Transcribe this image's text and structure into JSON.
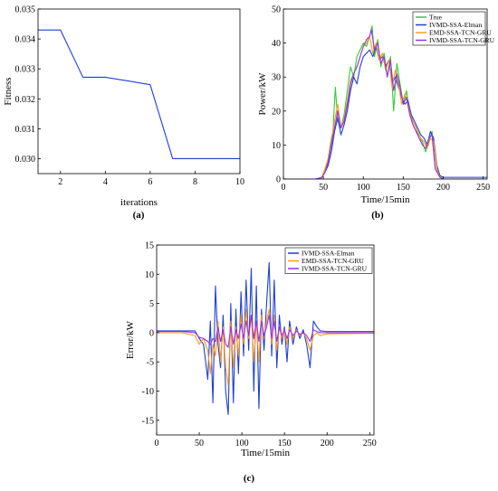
{
  "chart_data": [
    {
      "type": "line",
      "panel_label": "(a)",
      "xlabel": "iterations",
      "ylabel": "Fitness",
      "xlim": [
        1,
        10
      ],
      "ylim": [
        0.0295,
        0.035
      ],
      "xticks": [
        2,
        4,
        6,
        8,
        10
      ],
      "yticks": [
        0.03,
        0.031,
        0.032,
        0.033,
        0.034,
        0.035
      ],
      "ytick_labels": [
        "0.030",
        "0.031",
        "0.032",
        "0.033",
        "0.034",
        "0.035"
      ],
      "grid": false,
      "series": [
        {
          "color": "#1f3fd6",
          "x": [
            1,
            2,
            3,
            4,
            5,
            6,
            7,
            8,
            9,
            10
          ],
          "y": [
            0.0343,
            0.0343,
            0.03272,
            0.03272,
            0.0326,
            0.03247,
            0.03,
            0.03,
            0.03,
            0.03
          ]
        }
      ]
    },
    {
      "type": "line",
      "panel_label": "(b)",
      "xlabel": "Time/15min",
      "ylabel": "Power/kW",
      "xlim": [
        0,
        255
      ],
      "ylim": [
        0,
        50
      ],
      "xticks": [
        0,
        50,
        100,
        150,
        200,
        250
      ],
      "yticks": [
        0,
        10,
        20,
        30,
        40,
        50
      ],
      "grid": false,
      "legend_position": "top-right",
      "series": [
        {
          "name": "True",
          "color": "#33cc33",
          "x": [
            0,
            40,
            48,
            52,
            56,
            60,
            62,
            65,
            68,
            72,
            76,
            80,
            84,
            88,
            92,
            96,
            100,
            104,
            108,
            111,
            114,
            118,
            122,
            126,
            130,
            134,
            138,
            142,
            146,
            150,
            154,
            158,
            162,
            166,
            170,
            174,
            178,
            182,
            186,
            190,
            196,
            200,
            255
          ],
          "y": [
            0,
            0,
            0.3,
            2,
            6,
            12,
            14,
            27,
            17,
            15,
            19,
            26,
            33,
            30,
            36,
            38,
            40,
            39,
            42,
            45,
            36,
            41,
            33,
            37,
            30,
            36,
            20,
            34,
            28,
            22,
            26,
            20,
            17,
            15,
            12,
            11,
            8,
            11,
            14,
            3,
            0.5,
            0,
            0
          ]
        },
        {
          "name": "IVMD-SSA-Elman",
          "color": "#1f3fd6",
          "x": [
            0,
            40,
            48,
            52,
            56,
            60,
            64,
            68,
            72,
            76,
            80,
            84,
            88,
            92,
            96,
            100,
            104,
            108,
            112,
            116,
            120,
            124,
            128,
            132,
            136,
            140,
            144,
            148,
            152,
            156,
            160,
            164,
            168,
            172,
            176,
            180,
            184,
            188,
            192,
            196,
            200,
            255
          ],
          "y": [
            0,
            0,
            0.5,
            2,
            4,
            8,
            14,
            18,
            13,
            16,
            20,
            26,
            30,
            28,
            33,
            36,
            37,
            38,
            36,
            39,
            35,
            36,
            33,
            35,
            28,
            30,
            27,
            24,
            22,
            23,
            19,
            17,
            15,
            13,
            12,
            10,
            14,
            12,
            4,
            1,
            0.5,
            0.5
          ]
        },
        {
          "name": "EMD-SSA-TCN-GRU",
          "color": "#ff9a1f",
          "x": [
            0,
            40,
            48,
            52,
            56,
            60,
            64,
            68,
            72,
            76,
            80,
            84,
            88,
            92,
            96,
            100,
            104,
            108,
            112,
            116,
            120,
            124,
            128,
            132,
            136,
            140,
            144,
            148,
            152,
            156,
            160,
            164,
            168,
            172,
            176,
            180,
            184,
            188,
            192,
            196,
            200,
            255
          ],
          "y": [
            0,
            0,
            0.5,
            3,
            6,
            11,
            17,
            22,
            15,
            18,
            23,
            29,
            31,
            33,
            36,
            39,
            40,
            42,
            37,
            40,
            35,
            37,
            32,
            35,
            27,
            32,
            28,
            22,
            25,
            22,
            18,
            16,
            14,
            12,
            11,
            9,
            12,
            11,
            3,
            0.5,
            0,
            0
          ]
        },
        {
          "name": "IVMD-SSA-TCN-GRU",
          "color": "#9b30e0",
          "x": [
            0,
            40,
            48,
            52,
            56,
            60,
            64,
            68,
            72,
            76,
            80,
            84,
            88,
            92,
            96,
            100,
            104,
            108,
            110,
            114,
            118,
            122,
            126,
            130,
            134,
            138,
            142,
            146,
            150,
            154,
            158,
            162,
            166,
            170,
            174,
            178,
            182,
            186,
            190,
            196,
            200,
            255
          ],
          "y": [
            0,
            0,
            0.4,
            2,
            5,
            10,
            15,
            20,
            15,
            17,
            22,
            28,
            31,
            33,
            36,
            39,
            41,
            42,
            44,
            38,
            40,
            34,
            36,
            30,
            35,
            26,
            31,
            27,
            22,
            24,
            19,
            16,
            14,
            12,
            10,
            9,
            12,
            13,
            3,
            0.5,
            0,
            0
          ]
        }
      ]
    },
    {
      "type": "line",
      "panel_label": "(c)",
      "xlabel": "Time/15min",
      "ylabel": "Error/kW",
      "xlim": [
        0,
        255
      ],
      "ylim": [
        -17.5,
        15
      ],
      "xticks": [
        0,
        50,
        100,
        150,
        200,
        250
      ],
      "yticks": [
        -15,
        -10,
        -5,
        0,
        5,
        10,
        15
      ],
      "grid": false,
      "legend_position": "top-right",
      "series": [
        {
          "name": "IVMD-SSA-Elman",
          "color": "#1f3fd6",
          "x": [
            0,
            30,
            45,
            50,
            55,
            60,
            63,
            66,
            69,
            72,
            75,
            78,
            81,
            84,
            87,
            90,
            93,
            96,
            99,
            102,
            105,
            108,
            111,
            114,
            117,
            120,
            123,
            126,
            129,
            132,
            135,
            138,
            141,
            144,
            147,
            150,
            153,
            156,
            160,
            164,
            168,
            172,
            176,
            180,
            184,
            188,
            192,
            200,
            255
          ],
          "y": [
            0.3,
            0.3,
            0.3,
            -1,
            -2,
            -8,
            2,
            -12,
            8,
            -2,
            -6,
            3,
            -10,
            -14,
            5,
            -12,
            4,
            -7,
            7,
            -4,
            9,
            -3,
            11,
            -10,
            8,
            -13,
            4,
            -3,
            5,
            12,
            -4,
            9,
            -6,
            3,
            -2,
            1,
            -5,
            2,
            -2,
            1,
            -1,
            0.5,
            -2,
            -6,
            2,
            1,
            0.3,
            0.2,
            0.2
          ]
        },
        {
          "name": "EMD-SSA-TCN-GRU",
          "color": "#ff9a1f",
          "x": [
            0,
            30,
            45,
            50,
            55,
            60,
            63,
            66,
            69,
            72,
            75,
            78,
            81,
            84,
            87,
            90,
            93,
            96,
            99,
            102,
            105,
            108,
            111,
            114,
            117,
            120,
            123,
            126,
            129,
            132,
            135,
            138,
            141,
            144,
            147,
            150,
            153,
            156,
            160,
            164,
            168,
            172,
            176,
            180,
            184,
            188,
            192,
            200,
            255
          ],
          "y": [
            0,
            0,
            -0.5,
            -2,
            -1,
            -3,
            -7,
            -2,
            -4,
            2,
            -5,
            1,
            -6,
            -9,
            2,
            -6,
            1,
            -4,
            3,
            -2,
            4,
            -1,
            3,
            -5,
            2,
            -5,
            3,
            -1,
            2,
            4,
            -2,
            3,
            -3,
            1,
            -1,
            0.5,
            -2,
            1,
            -1,
            0.5,
            -0.5,
            0,
            -1,
            -3,
            -0.5,
            0,
            -0.5,
            -0.2,
            -0.1
          ]
        },
        {
          "name": "IVMD-SSA-TCN-GRU",
          "color": "#9b30e0",
          "x": [
            0,
            30,
            45,
            50,
            55,
            60,
            63,
            66,
            69,
            72,
            75,
            78,
            81,
            84,
            87,
            90,
            93,
            96,
            99,
            102,
            105,
            108,
            111,
            114,
            117,
            120,
            123,
            126,
            129,
            132,
            135,
            138,
            141,
            144,
            147,
            150,
            153,
            156,
            160,
            164,
            168,
            172,
            176,
            180,
            184,
            188,
            192,
            200,
            255
          ],
          "y": [
            0.2,
            0.2,
            0,
            -0.8,
            -1,
            -1.5,
            -2,
            -1,
            -1.5,
            1,
            -1.5,
            0.5,
            -2,
            -2.5,
            1,
            -2,
            0.5,
            -1,
            1.5,
            -1,
            2,
            -0.5,
            3,
            -1,
            2,
            -1.5,
            2,
            -0.5,
            1,
            3,
            -1,
            2,
            -1.5,
            1,
            -0.5,
            0.5,
            -1,
            0.5,
            -0.5,
            0.3,
            -0.3,
            0,
            -0.5,
            -1.5,
            0.5,
            0.2,
            0,
            0,
            0
          ]
        }
      ]
    }
  ]
}
